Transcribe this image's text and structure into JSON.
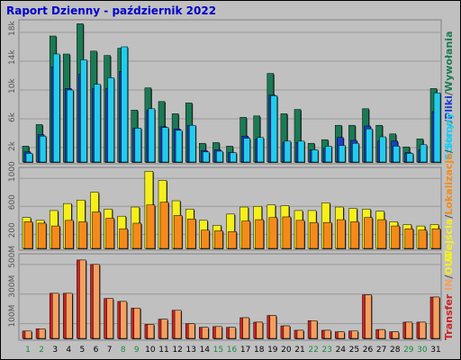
{
  "title": "Raport Dzienny -  październik 2022",
  "legend": {
    "wywolania": "Wywołania",
    "pliki": "Pliki",
    "strony": "Strony",
    "lokalizacje": "Lokalizacje",
    "wejscia": "Wejścia",
    "transfer": "Transfer",
    "in": "IN",
    "out": "OUT",
    "sep": "/"
  },
  "colors": {
    "wywolania": "#1a7a55",
    "pliki": "#1a3ecc",
    "strony": "#22ccee",
    "wejscia": "#f5f01a",
    "lokalizacje": "#f58a1a",
    "transfer": "#cc2222",
    "transfer_light": "#f5a060",
    "in_text": "#f5a060",
    "out_text": "#f5f01a"
  },
  "chart_data": [
    {
      "type": "bar",
      "title": "Wywołania / Pliki / Strony",
      "categories": [
        "1",
        "2",
        "3",
        "4",
        "5",
        "6",
        "7",
        "8",
        "9",
        "10",
        "11",
        "12",
        "13",
        "14",
        "15",
        "16",
        "17",
        "18",
        "19",
        "20",
        "21",
        "22",
        "23",
        "24",
        "25",
        "26",
        "27",
        "28",
        "29",
        "30",
        "31"
      ],
      "weekend_days": [
        "1",
        "2",
        "8",
        "9",
        "15",
        "16",
        "22",
        "23",
        "29",
        "30"
      ],
      "yticks": [
        "2k",
        "6k",
        "10k",
        "14k",
        "18k"
      ],
      "ylim": [
        0,
        19500
      ],
      "series": [
        {
          "name": "Wywołania",
          "values": [
            2200,
            5200,
            17500,
            15000,
            19200,
            15400,
            14800,
            15800,
            7200,
            10300,
            8400,
            6700,
            8200,
            2600,
            2700,
            2200,
            6200,
            6400,
            12300,
            6700,
            7300,
            2600,
            3100,
            5100,
            5100,
            7400,
            5100,
            3900,
            2100,
            3200,
            10200
          ]
        },
        {
          "name": "Pliki",
          "values": [
            1400,
            3800,
            13200,
            10200,
            12200,
            10200,
            10200,
            12600,
            4700,
            7200,
            4900,
            4600,
            5100,
            1600,
            1700,
            1300,
            3600,
            3200,
            9300,
            2700,
            2700,
            1700,
            1900,
            3400,
            3000,
            5000,
            2900,
            2900,
            1300,
            1700,
            7000
          ]
        },
        {
          "name": "Strony",
          "values": [
            1200,
            3600,
            15000,
            10000,
            14200,
            10800,
            11700,
            16000,
            4700,
            7400,
            4800,
            4400,
            5100,
            1400,
            1500,
            1300,
            3300,
            3400,
            9200,
            2900,
            2900,
            1700,
            2200,
            2300,
            2600,
            4600,
            3500,
            2200,
            1200,
            2400,
            9600
          ]
        }
      ]
    },
    {
      "type": "bar",
      "title": "Wejścia / Lokalizacje",
      "categories": [
        "1",
        "2",
        "3",
        "4",
        "5",
        "6",
        "7",
        "8",
        "9",
        "10",
        "11",
        "12",
        "13",
        "14",
        "15",
        "16",
        "17",
        "18",
        "19",
        "20",
        "21",
        "22",
        "23",
        "24",
        "25",
        "26",
        "27",
        "28",
        "29",
        "30",
        "31"
      ],
      "yticks": [
        "200",
        "600",
        "1000"
      ],
      "ylim": [
        0,
        1130
      ],
      "series": [
        {
          "name": "Wejścia",
          "values": [
            440,
            400,
            540,
            640,
            690,
            800,
            560,
            460,
            590,
            1100,
            970,
            680,
            560,
            400,
            330,
            490,
            590,
            600,
            620,
            610,
            540,
            540,
            650,
            590,
            570,
            560,
            530,
            380,
            340,
            320,
            340
          ]
        },
        {
          "name": "Lokalizacje",
          "values": [
            380,
            360,
            320,
            400,
            380,
            520,
            430,
            280,
            360,
            620,
            660,
            470,
            420,
            260,
            250,
            240,
            390,
            410,
            440,
            450,
            400,
            370,
            370,
            410,
            380,
            440,
            410,
            320,
            280,
            260,
            280
          ]
        }
      ]
    },
    {
      "type": "bar",
      "title": "Transfer IN / OUT",
      "categories": [
        "1",
        "2",
        "3",
        "4",
        "5",
        "6",
        "7",
        "8",
        "9",
        "10",
        "11",
        "12",
        "13",
        "14",
        "15",
        "16",
        "17",
        "18",
        "19",
        "20",
        "21",
        "22",
        "23",
        "24",
        "25",
        "26",
        "27",
        "28",
        "29",
        "30",
        "31"
      ],
      "yticks": [
        "100M",
        "300M",
        "500M"
      ],
      "ylim": [
        0,
        560000000
      ],
      "series": [
        {
          "name": "Transfer",
          "values": [
            50000000,
            65000000,
            305000000,
            305000000,
            530000000,
            500000000,
            270000000,
            250000000,
            205000000,
            95000000,
            130000000,
            190000000,
            100000000,
            75000000,
            80000000,
            75000000,
            140000000,
            110000000,
            155000000,
            85000000,
            55000000,
            120000000,
            55000000,
            45000000,
            50000000,
            295000000,
            60000000,
            45000000,
            110000000,
            110000000,
            280000000
          ]
        }
      ]
    }
  ]
}
